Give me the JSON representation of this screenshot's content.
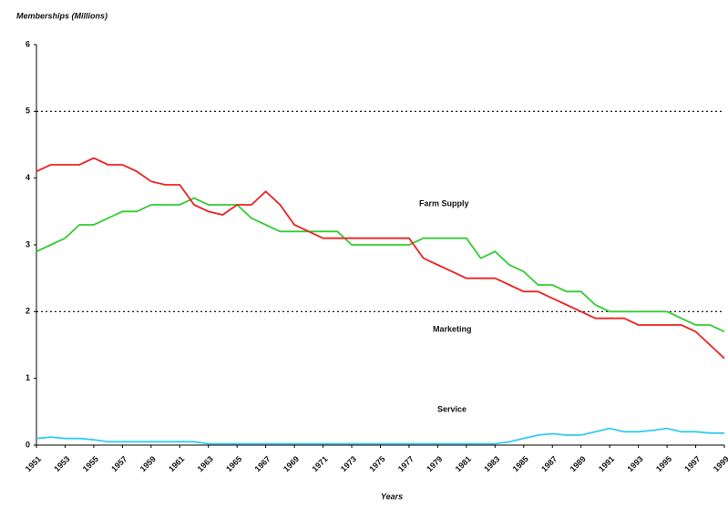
{
  "chart_data": {
    "type": "line",
    "title": "Memberships (Millions)",
    "xlabel": "Years",
    "x": [
      1951,
      1952,
      1953,
      1954,
      1955,
      1956,
      1957,
      1958,
      1959,
      1960,
      1961,
      1962,
      1963,
      1964,
      1965,
      1966,
      1967,
      1968,
      1969,
      1970,
      1971,
      1972,
      1973,
      1974,
      1975,
      1976,
      1977,
      1978,
      1979,
      1980,
      1981,
      1982,
      1983,
      1984,
      1985,
      1986,
      1987,
      1988,
      1989,
      1990,
      1991,
      1992,
      1993,
      1994,
      1995,
      1996,
      1997,
      1998,
      1999
    ],
    "series": [
      {
        "name": "Farm Supply",
        "color": "#33cc33",
        "values": [
          2.9,
          3.0,
          3.1,
          3.3,
          3.3,
          3.4,
          3.5,
          3.5,
          3.6,
          3.6,
          3.6,
          3.7,
          3.6,
          3.6,
          3.6,
          3.4,
          3.3,
          3.2,
          3.2,
          3.2,
          3.2,
          3.2,
          3.0,
          3.0,
          3.0,
          3.0,
          3.0,
          3.1,
          3.1,
          3.1,
          3.1,
          2.8,
          2.9,
          2.7,
          2.6,
          2.4,
          2.4,
          2.3,
          2.3,
          2.1,
          2.0,
          2.0,
          2.0,
          2.0,
          2.0,
          1.9,
          1.8,
          1.8,
          1.7
        ]
      },
      {
        "name": "Marketing",
        "color": "#ee2222",
        "values": [
          4.1,
          4.2,
          4.2,
          4.2,
          4.3,
          4.2,
          4.2,
          4.1,
          3.95,
          3.9,
          3.9,
          3.6,
          3.5,
          3.45,
          3.6,
          3.6,
          3.8,
          3.6,
          3.3,
          3.2,
          3.1,
          3.1,
          3.1,
          3.1,
          3.1,
          3.1,
          3.1,
          2.8,
          2.7,
          2.6,
          2.5,
          2.5,
          2.5,
          2.4,
          2.3,
          2.3,
          2.2,
          2.1,
          2.0,
          1.9,
          1.9,
          1.9,
          1.8,
          1.8,
          1.8,
          1.8,
          1.7,
          1.5,
          1.3
        ]
      },
      {
        "name": "Service",
        "color": "#33ccee",
        "values": [
          0.1,
          0.12,
          0.1,
          0.1,
          0.08,
          0.05,
          0.05,
          0.05,
          0.05,
          0.05,
          0.05,
          0.05,
          0.02,
          0.02,
          0.02,
          0.02,
          0.02,
          0.02,
          0.02,
          0.02,
          0.02,
          0.02,
          0.02,
          0.02,
          0.02,
          0.02,
          0.02,
          0.02,
          0.02,
          0.02,
          0.02,
          0.02,
          0.02,
          0.05,
          0.1,
          0.15,
          0.17,
          0.15,
          0.15,
          0.2,
          0.25,
          0.2,
          0.2,
          0.22,
          0.25,
          0.2,
          0.2,
          0.18,
          0.18
        ]
      }
    ],
    "xlim": [
      1951,
      1999
    ],
    "xticks": [
      1951,
      1953,
      1955,
      1957,
      1959,
      1961,
      1963,
      1965,
      1967,
      1969,
      1971,
      1973,
      1975,
      1977,
      1979,
      1981,
      1983,
      1985,
      1987,
      1989,
      1991,
      1993,
      1995,
      1997,
      1999
    ],
    "ylim": [
      0,
      6
    ],
    "yticks": [
      0,
      1,
      2,
      3,
      4,
      5,
      6
    ],
    "grid_at": [
      2,
      5
    ]
  }
}
